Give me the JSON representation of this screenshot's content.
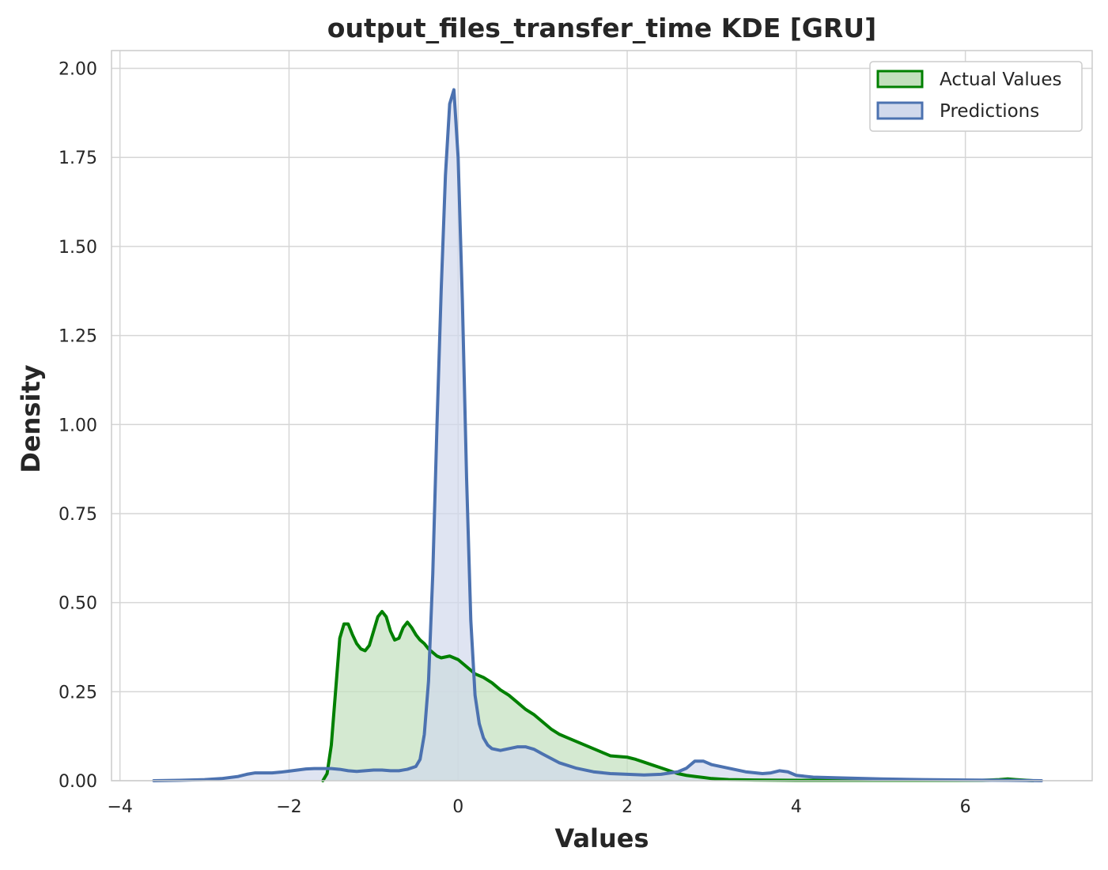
{
  "chart_data": {
    "type": "area",
    "title": "output_files_transfer_time KDE [GRU]",
    "xlabel": "Values",
    "ylabel": "Density",
    "xlim": [
      -4.1,
      7.5
    ],
    "ylim": [
      0,
      2.05
    ],
    "xticks": [
      -4,
      -2,
      0,
      2,
      4,
      6
    ],
    "xtick_labels": [
      "−4",
      "−2",
      "0",
      "2",
      "4",
      "6"
    ],
    "yticks": [
      0,
      0.25,
      0.5,
      0.75,
      1.0,
      1.25,
      1.5,
      1.75,
      2.0
    ],
    "ytick_labels": [
      "0.00",
      "0.25",
      "0.50",
      "0.75",
      "1.00",
      "1.25",
      "1.50",
      "1.75",
      "2.00"
    ],
    "grid": true,
    "legend_position": "top-right",
    "series": [
      {
        "name": "Actual Values",
        "line_color": "#008000",
        "fill_color": "#c2e0bd",
        "x": [
          -1.6,
          -1.55,
          -1.5,
          -1.45,
          -1.4,
          -1.35,
          -1.3,
          -1.25,
          -1.2,
          -1.15,
          -1.1,
          -1.05,
          -1.0,
          -0.95,
          -0.9,
          -0.85,
          -0.8,
          -0.75,
          -0.7,
          -0.65,
          -0.6,
          -0.55,
          -0.5,
          -0.45,
          -0.4,
          -0.35,
          -0.3,
          -0.25,
          -0.2,
          -0.1,
          0.0,
          0.1,
          0.2,
          0.3,
          0.4,
          0.5,
          0.6,
          0.7,
          0.8,
          0.9,
          1.0,
          1.1,
          1.2,
          1.3,
          1.4,
          1.5,
          1.6,
          1.7,
          1.8,
          1.9,
          2.0,
          2.1,
          2.2,
          2.3,
          2.4,
          2.5,
          2.6,
          2.7,
          2.8,
          3.0,
          3.2,
          3.5,
          4.0,
          5.0,
          6.0,
          6.2,
          6.4,
          6.5,
          6.6,
          6.8
        ],
        "y": [
          0.0,
          0.02,
          0.1,
          0.25,
          0.4,
          0.44,
          0.44,
          0.41,
          0.385,
          0.37,
          0.365,
          0.38,
          0.42,
          0.46,
          0.475,
          0.46,
          0.42,
          0.395,
          0.4,
          0.43,
          0.445,
          0.43,
          0.41,
          0.395,
          0.385,
          0.37,
          0.36,
          0.35,
          0.345,
          0.35,
          0.34,
          0.32,
          0.3,
          0.29,
          0.275,
          0.255,
          0.24,
          0.22,
          0.2,
          0.185,
          0.165,
          0.145,
          0.13,
          0.12,
          0.11,
          0.1,
          0.09,
          0.08,
          0.07,
          0.068,
          0.066,
          0.06,
          0.052,
          0.044,
          0.036,
          0.028,
          0.02,
          0.015,
          0.012,
          0.006,
          0.003,
          0.002,
          0.001,
          0.001,
          0.001,
          0.001,
          0.003,
          0.005,
          0.003,
          0.0
        ]
      },
      {
        "name": "Predictions",
        "line_color": "#4c72b0",
        "fill_color": "#d1d9ec",
        "x": [
          -3.6,
          -3.3,
          -3.0,
          -2.8,
          -2.6,
          -2.5,
          -2.4,
          -2.3,
          -2.2,
          -2.1,
          -2.0,
          -1.9,
          -1.8,
          -1.7,
          -1.6,
          -1.5,
          -1.4,
          -1.3,
          -1.2,
          -1.1,
          -1.0,
          -0.9,
          -0.8,
          -0.7,
          -0.6,
          -0.5,
          -0.45,
          -0.4,
          -0.35,
          -0.3,
          -0.25,
          -0.2,
          -0.15,
          -0.1,
          -0.05,
          0.0,
          0.05,
          0.1,
          0.15,
          0.2,
          0.25,
          0.3,
          0.35,
          0.4,
          0.5,
          0.6,
          0.7,
          0.8,
          0.9,
          1.0,
          1.2,
          1.4,
          1.6,
          1.8,
          2.0,
          2.2,
          2.4,
          2.6,
          2.7,
          2.8,
          2.9,
          3.0,
          3.2,
          3.4,
          3.6,
          3.7,
          3.8,
          3.9,
          4.0,
          4.2,
          4.5,
          5.0,
          5.5,
          6.0,
          6.5,
          6.9
        ],
        "y": [
          0.0,
          0.001,
          0.003,
          0.006,
          0.012,
          0.018,
          0.022,
          0.022,
          0.022,
          0.024,
          0.027,
          0.03,
          0.033,
          0.034,
          0.034,
          0.034,
          0.032,
          0.028,
          0.026,
          0.028,
          0.03,
          0.03,
          0.028,
          0.028,
          0.032,
          0.04,
          0.06,
          0.13,
          0.28,
          0.58,
          1.0,
          1.38,
          1.7,
          1.9,
          1.94,
          1.75,
          1.35,
          0.85,
          0.45,
          0.24,
          0.16,
          0.12,
          0.1,
          0.09,
          0.085,
          0.09,
          0.095,
          0.095,
          0.088,
          0.075,
          0.05,
          0.035,
          0.025,
          0.02,
          0.018,
          0.016,
          0.018,
          0.025,
          0.035,
          0.055,
          0.055,
          0.045,
          0.035,
          0.025,
          0.02,
          0.022,
          0.028,
          0.025,
          0.015,
          0.01,
          0.008,
          0.005,
          0.003,
          0.002,
          0.001,
          0.0
        ]
      }
    ]
  }
}
